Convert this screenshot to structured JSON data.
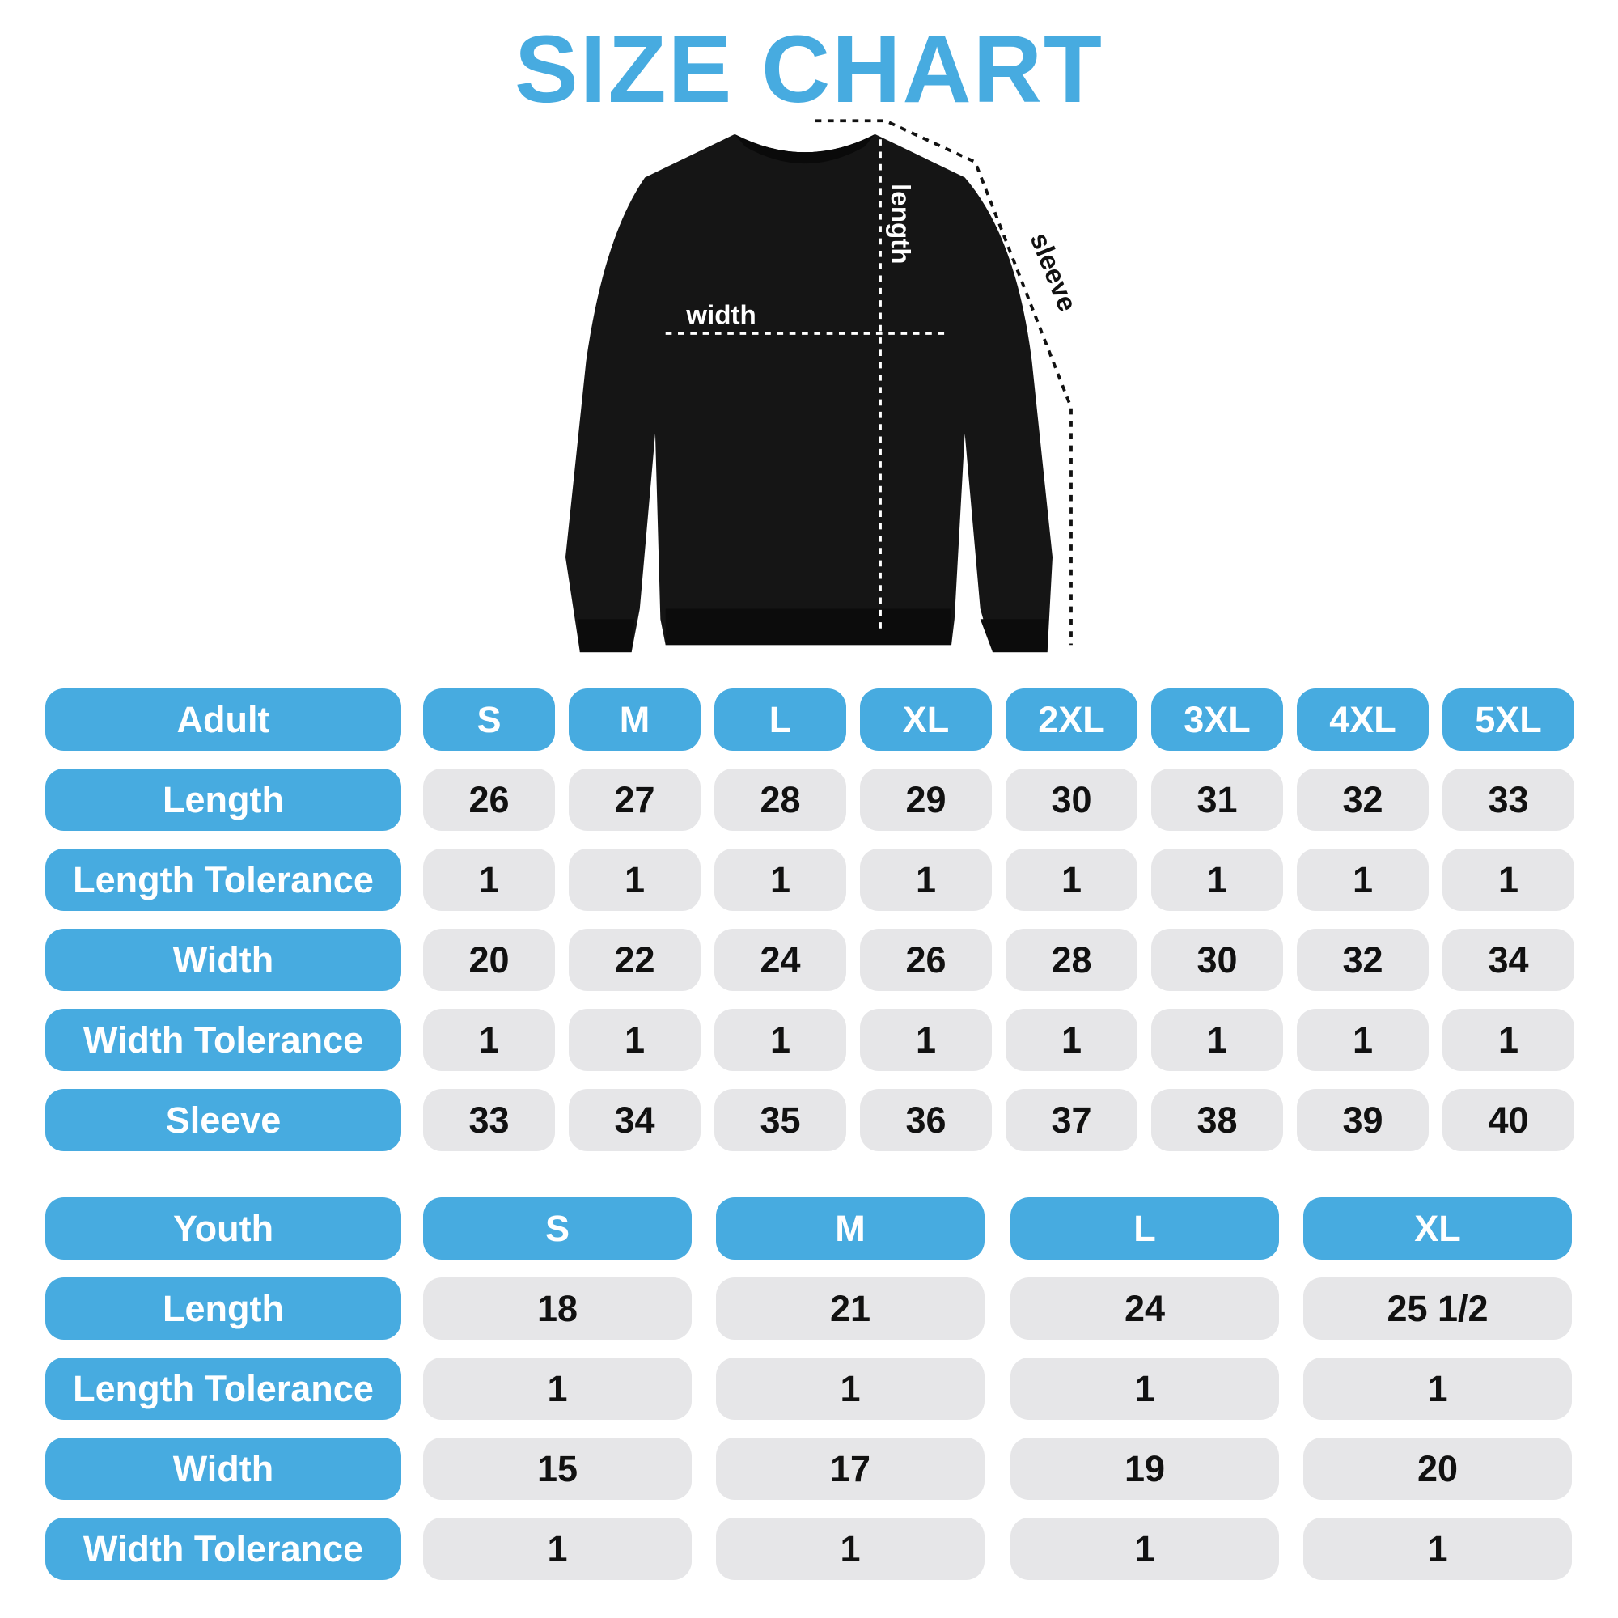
{
  "title": "SIZE CHART",
  "diagram": {
    "width_label": "width",
    "length_label": "length",
    "sleeve_label": "sleeve"
  },
  "colors": {
    "accent": "#47abe0",
    "cell": "#e6e6e8",
    "garment": "#151515"
  },
  "adult": {
    "header": "Adult",
    "sizes": [
      "S",
      "M",
      "L",
      "XL",
      "2XL",
      "3XL",
      "4XL",
      "5XL"
    ],
    "rows": [
      {
        "label": "Length",
        "values": [
          "26",
          "27",
          "28",
          "29",
          "30",
          "31",
          "32",
          "33"
        ]
      },
      {
        "label": "Length Tolerance",
        "values": [
          "1",
          "1",
          "1",
          "1",
          "1",
          "1",
          "1",
          "1"
        ]
      },
      {
        "label": "Width",
        "values": [
          "20",
          "22",
          "24",
          "26",
          "28",
          "30",
          "32",
          "34"
        ]
      },
      {
        "label": "Width Tolerance",
        "values": [
          "1",
          "1",
          "1",
          "1",
          "1",
          "1",
          "1",
          "1"
        ]
      },
      {
        "label": "Sleeve",
        "values": [
          "33",
          "34",
          "35",
          "36",
          "37",
          "38",
          "39",
          "40"
        ]
      }
    ]
  },
  "youth": {
    "header": "Youth",
    "sizes": [
      "S",
      "M",
      "L",
      "XL"
    ],
    "rows": [
      {
        "label": "Length",
        "values": [
          "18",
          "21",
          "24",
          "25 1/2"
        ]
      },
      {
        "label": "Length Tolerance",
        "values": [
          "1",
          "1",
          "1",
          "1"
        ]
      },
      {
        "label": "Width",
        "values": [
          "15",
          "17",
          "19",
          "20"
        ]
      },
      {
        "label": "Width Tolerance",
        "values": [
          "1",
          "1",
          "1",
          "1"
        ]
      }
    ]
  }
}
